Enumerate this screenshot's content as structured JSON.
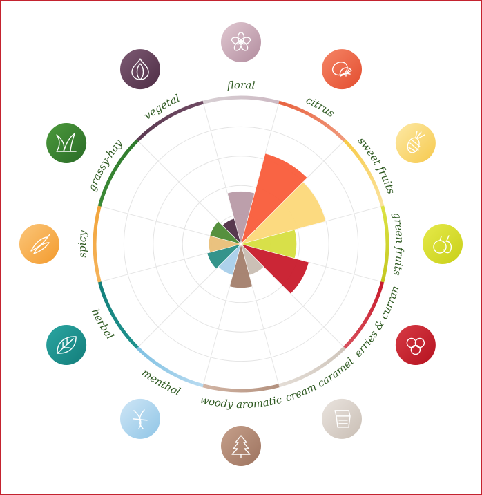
{
  "chart_data": {
    "type": "polar-bar",
    "title": "",
    "grid": true,
    "rmax": 5,
    "categories": [
      {
        "name": "floral",
        "value": 1.8,
        "color": "#b89aa7",
        "ring": [
          "#d8d0d4",
          "#cdb9c3"
        ],
        "icon": "flower-icon"
      },
      {
        "name": "citrus",
        "value": 3.2,
        "color": "#f95c3a",
        "ring": [
          "#e8623f",
          "#f09a7c"
        ],
        "icon": "lemon-icon"
      },
      {
        "name": "sweet fruits",
        "value": 3.0,
        "color": "#fcd879",
        "ring": [
          "#f7ca45",
          "#fbe3a0"
        ],
        "icon": "pineapple-icon"
      },
      {
        "name": "green fruits",
        "value": 1.9,
        "color": "#d6de3f",
        "ring": [
          "#dce343",
          "#c3c61f"
        ],
        "icon": "apple-pear-icon"
      },
      {
        "name": "berries & currant",
        "value": 2.4,
        "color": "#c81a2b",
        "ring": [
          "#c81a2b",
          "#d8505c"
        ],
        "icon": "berries-icon"
      },
      {
        "name": "cream caramel",
        "value": 1.1,
        "color": "#c8bdb2",
        "ring": [
          "#cfc5bb",
          "#e4ddd6"
        ],
        "icon": "cream-icon"
      },
      {
        "name": "woody aromatic",
        "value": 1.5,
        "color": "#a37e6b",
        "ring": [
          "#b3917e",
          "#d2b5a5"
        ],
        "icon": "tree-icon"
      },
      {
        "name": "menthol",
        "value": 1.1,
        "color": "#a9cfea",
        "ring": [
          "#b8dbf1",
          "#7ec0e2"
        ],
        "icon": "mint-icon"
      },
      {
        "name": "herbal",
        "value": 1.2,
        "color": "#2a8e85",
        "ring": [
          "#1f928d",
          "#137f7b"
        ],
        "icon": "leaf-icon"
      },
      {
        "name": "spicy",
        "value": 1.1,
        "color": "#e9bf78",
        "ring": [
          "#f5b35a",
          "#f2a43a"
        ],
        "icon": "pepper-icon"
      },
      {
        "name": "grassy-hay",
        "value": 1.1,
        "color": "#4d8a34",
        "ring": [
          "#3c8a36",
          "#2e7a2c"
        ],
        "icon": "grass-icon"
      },
      {
        "name": "vegetal",
        "value": 0.9,
        "color": "#4f2d45",
        "ring": [
          "#5c3a52",
          "#6f4a63"
        ],
        "icon": "onion-icon"
      }
    ],
    "icon_colors": {
      "floral": [
        "#e1c9d2",
        "#b28c9e"
      ],
      "citrus": [
        "#f58566",
        "#e34d2f"
      ],
      "sweet fruits": [
        "#fde9a6",
        "#f6c94c"
      ],
      "green fruits": [
        "#e6ea4a",
        "#c8cf18"
      ],
      "berries & currant": [
        "#d73b45",
        "#b5121f"
      ],
      "cream caramel": [
        "#eae4df",
        "#c9beb4"
      ],
      "woody aromatic": [
        "#c6a08b",
        "#9d735f"
      ],
      "menthol": [
        "#cfe6f6",
        "#8fc5e6"
      ],
      "herbal": [
        "#2ba6a2",
        "#137d7a"
      ],
      "spicy": [
        "#fbc67a",
        "#f39a2c"
      ],
      "grassy-hay": [
        "#4c9a3c",
        "#2a6b27"
      ],
      "vegetal": [
        "#7d5a73",
        "#4e2d45"
      ]
    }
  }
}
